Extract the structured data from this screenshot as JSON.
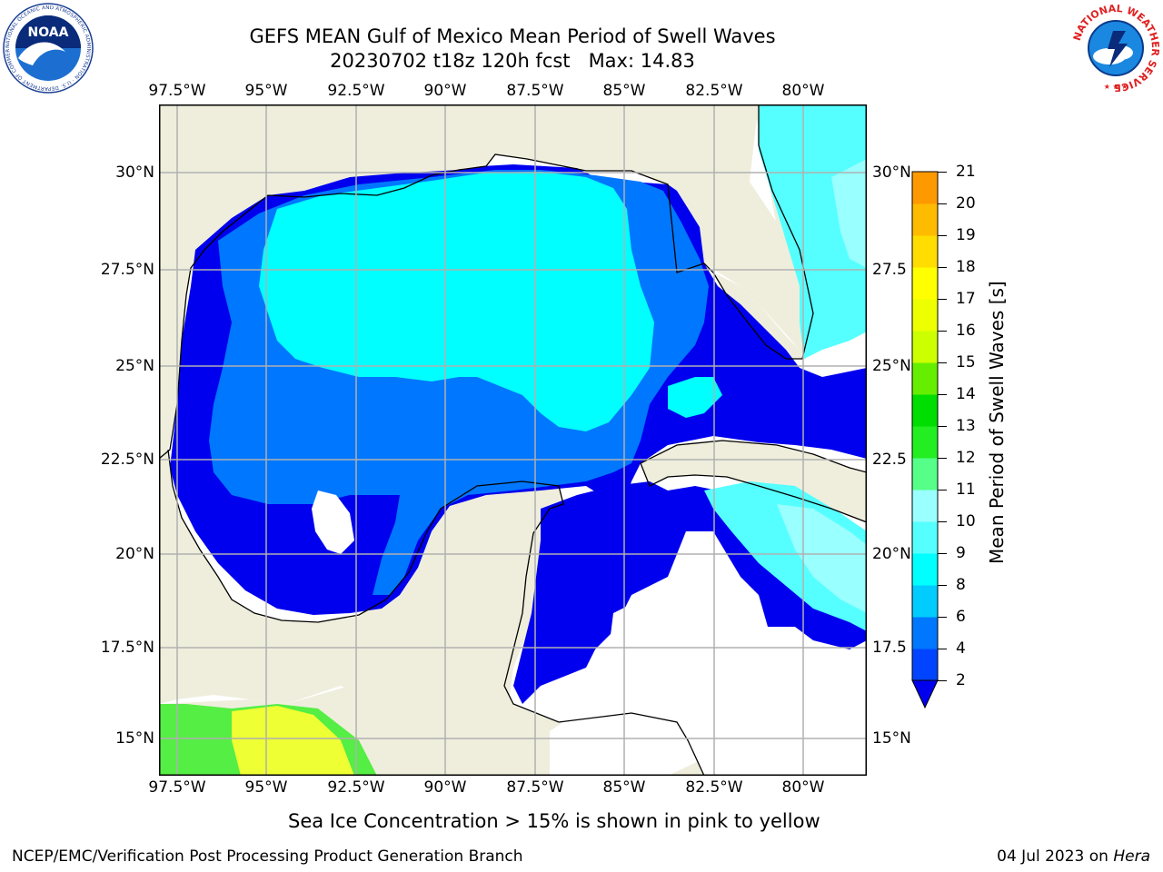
{
  "title_line1": "GEFS MEAN Gulf of Mexico Mean Period of Swell Waves",
  "title_line2": "20230702 t18z 120h fcst   Max: 14.83",
  "lon_ticks": [
    "97.5°W",
    "95°W",
    "92.5°W",
    "90°W",
    "87.5°W",
    "85°W",
    "82.5°W",
    "80°W"
  ],
  "lat_ticks_left": [
    "30°N",
    "27.5°N",
    "25°N",
    "22.5°N",
    "20°N",
    "17.5°N",
    "15°N"
  ],
  "lat_ticks_right": [
    "30°N",
    "27.5",
    "25°N",
    "22.5",
    "20°N",
    "17.5",
    "15°N"
  ],
  "colorbar": {
    "label": "Mean Period of Swell Waves [s]",
    "ticks": [
      "2",
      "4",
      "6",
      "8",
      "9",
      "10",
      "11",
      "12",
      "13",
      "14",
      "15",
      "16",
      "17",
      "18",
      "19",
      "20",
      "21"
    ],
    "colors": [
      "#0044ff",
      "#0077ff",
      "#00ccff",
      "#00ffff",
      "#55ffff",
      "#99ffff",
      "#55ff88",
      "#22ee22",
      "#00dd00",
      "#66ee00",
      "#ccff00",
      "#eeff00",
      "#ffff00",
      "#ffdd00",
      "#ffbb00",
      "#ff9900",
      "#ff7700",
      "#ff5500",
      "#ff3300",
      "#ff0000"
    ],
    "under_color": "#0000ee"
  },
  "map_colors": {
    "land": "#efeedd",
    "deep_blue": "#0000ee",
    "mid_blue": "#0077ff",
    "cyan": "#00ffff",
    "light_cyan": "#55ffff",
    "pale_cyan": "#99ffff",
    "green": "#55ee44",
    "yellow": "#eeff33",
    "grid": "#b0b0b0"
  },
  "bottom_note": "Sea Ice Concentration > 15% is shown in pink to yellow",
  "footer_left": "NCEP/EMC/Verification Post Processing Product Generation Branch",
  "footer_right_date": "04 Jul 2023 on ",
  "footer_right_host": "Hera",
  "logo_left": {
    "name": "NOAA",
    "ring_text": "NATIONAL OCEANIC AND ATMOSPHERIC ADMINISTRATION · U.S. DEPARTMENT OF COMMERCE"
  },
  "logo_right": {
    "ring_text": "NATIONAL WEATHER SERVICE"
  }
}
